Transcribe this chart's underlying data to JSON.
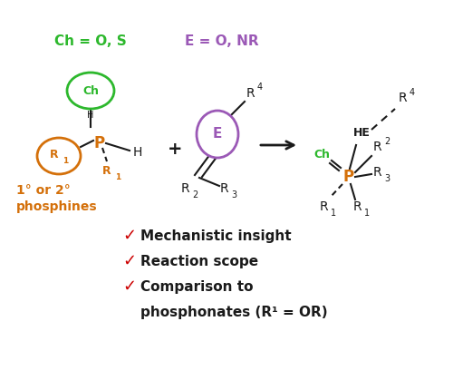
{
  "bg_color": "#ffffff",
  "green": "#2db82d",
  "purple": "#9b59b6",
  "orange": "#d4700a",
  "red": "#cc0000",
  "black": "#1a1a1a",
  "figsize": [
    5.0,
    4.08
  ],
  "dpi": 100,
  "xlim": [
    0,
    500
  ],
  "ylim": [
    0,
    408
  ]
}
